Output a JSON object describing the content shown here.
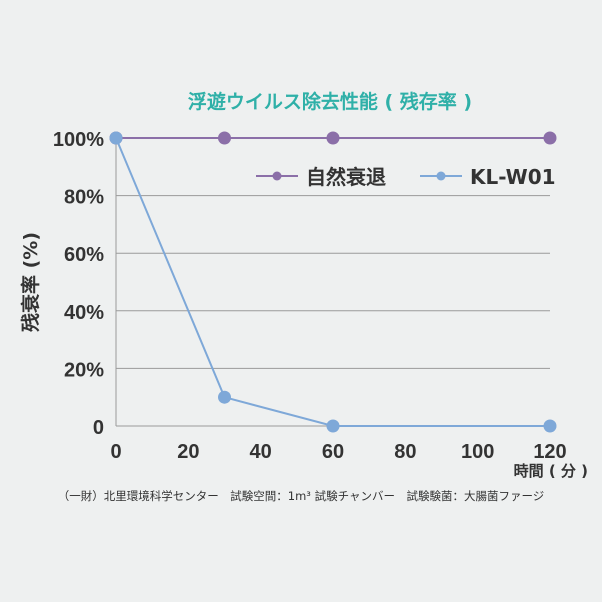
{
  "chart_data": {
    "type": "line",
    "title": "浮遊ウイルス除去性能 ( 残存率 )",
    "xlabel": "時間 ( 分 )",
    "ylabel": "残衰率 (%)",
    "xlim": [
      0,
      120
    ],
    "ylim": [
      0,
      100
    ],
    "x_ticks": [
      "0",
      "20",
      "40",
      "60",
      "80",
      "100",
      "120"
    ],
    "y_ticks": [
      "0",
      "20%",
      "40%",
      "60%",
      "80%",
      "100%"
    ],
    "grid": true,
    "legend_position": "top-right",
    "series": [
      {
        "name": "自然衰退",
        "color": "#8b6fa8",
        "x": [
          0,
          30,
          60,
          120
        ],
        "y": [
          100,
          100,
          100,
          100
        ]
      },
      {
        "name": "KL-W01",
        "color": "#7ea8d8",
        "x": [
          0,
          30,
          60,
          120
        ],
        "y": [
          100,
          10,
          0,
          0
        ]
      }
    ]
  },
  "footnote": "（一財）北里環境科学センター　試験空間：1m³ 試験チャンバー　試験験菌：大腸菌ファージ",
  "colors": {
    "title": "#2fb0a8",
    "grid": "#9a9a9a",
    "axis": "#333333"
  }
}
